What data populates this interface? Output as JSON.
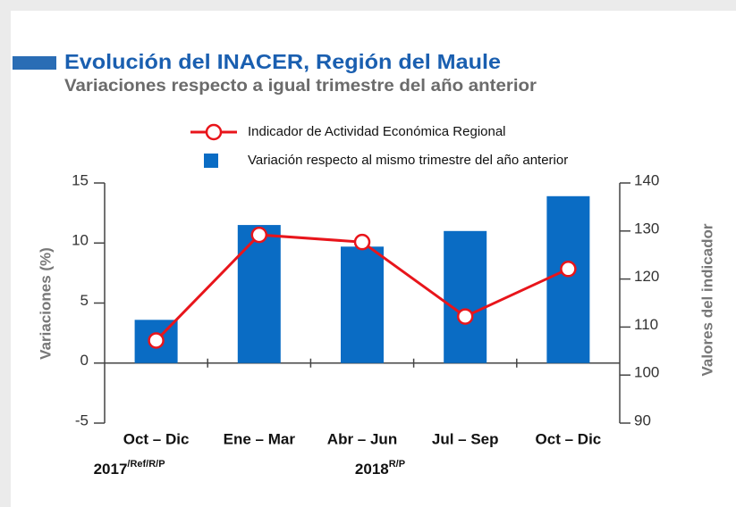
{
  "chart_data": {
    "type": "bar",
    "title": "Evolución del INACER, Región del Maule",
    "subtitle": "Variaciones respecto a igual trimestre del año anterior",
    "categories": [
      "Oct – Dic",
      "Ene – Mar",
      "Abr – Jun",
      "Jul – Sep",
      "Oct – Dic"
    ],
    "groups": [
      {
        "label": "2017",
        "sup": "/Ref/R/P"
      },
      {
        "label": "2018",
        "sup": "R/P"
      }
    ],
    "ylabel": "Variaciones (%)",
    "y2label": "Valores del indicador",
    "ylim": [
      -5,
      15
    ],
    "yticks": [
      -5,
      0,
      5,
      10,
      15
    ],
    "y2lim": [
      90,
      140
    ],
    "y2ticks": [
      90,
      100,
      110,
      120,
      130,
      140
    ],
    "series": [
      {
        "name": "Indicador de Actividad Económica Regional",
        "color": "#e8151b",
        "axis": "y2",
        "values": [
          107.2,
          129.2,
          127.7,
          112.2,
          122.1
        ]
      },
      {
        "name": "Variación respecto al mismo trimestre del año anterior",
        "color": "#0a6cc4",
        "values": [
          3.6,
          11.5,
          9.7,
          11.0,
          13.9
        ]
      }
    ]
  }
}
